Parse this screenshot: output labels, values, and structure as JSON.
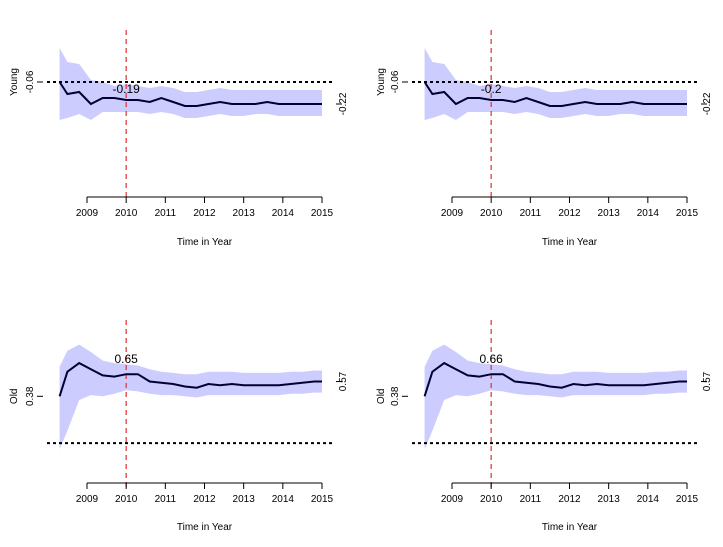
{
  "chart_data": [
    {
      "type": "line",
      "ylabel": "Young",
      "xlabel": "Time in Year",
      "x_ticks": [
        2009,
        2010,
        2011,
        2012,
        2013,
        2014,
        2015
      ],
      "y_tick_left": "-0.06",
      "y_tick_right": "-0.22",
      "reference_year": 2010,
      "reference_value_label": "-0.19",
      "hline": -0.06,
      "ylim": [
        -0.6,
        0.2
      ],
      "colors": {
        "band": "#ccccff",
        "line": "#000033",
        "ref": "#e03030"
      },
      "x": [
        2008.3,
        2008.5,
        2008.8,
        2009.1,
        2009.4,
        2009.7,
        2010.0,
        2010.3,
        2010.6,
        2010.9,
        2011.2,
        2011.5,
        2011.8,
        2012.1,
        2012.4,
        2012.7,
        2013.0,
        2013.3,
        2013.6,
        2013.9,
        2014.2,
        2014.5,
        2014.8,
        2015.0
      ],
      "series": [
        {
          "values": [
            -0.06,
            -0.12,
            -0.11,
            -0.17,
            -0.14,
            -0.14,
            -0.15,
            -0.15,
            -0.16,
            -0.14,
            -0.16,
            -0.18,
            -0.18,
            -0.17,
            -0.16,
            -0.17,
            -0.17,
            -0.17,
            -0.16,
            -0.17,
            -0.17,
            -0.17,
            -0.17,
            -0.17
          ]
        }
      ],
      "band_upper": [
        0.11,
        0.04,
        0.03,
        -0.05,
        -0.06,
        -0.08,
        -0.07,
        -0.08,
        -0.09,
        -0.08,
        -0.09,
        -0.11,
        -0.11,
        -0.1,
        -0.09,
        -0.1,
        -0.1,
        -0.1,
        -0.1,
        -0.1,
        -0.1,
        -0.1,
        -0.1,
        -0.1
      ],
      "band_lower": [
        -0.25,
        -0.24,
        -0.22,
        -0.25,
        -0.21,
        -0.21,
        -0.21,
        -0.21,
        -0.22,
        -0.21,
        -0.22,
        -0.24,
        -0.24,
        -0.23,
        -0.22,
        -0.23,
        -0.23,
        -0.22,
        -0.22,
        -0.23,
        -0.23,
        -0.23,
        -0.23,
        -0.23
      ]
    },
    {
      "type": "line",
      "ylabel": "Young",
      "xlabel": "Time in Year",
      "x_ticks": [
        2009,
        2010,
        2011,
        2012,
        2013,
        2014,
        2015
      ],
      "y_tick_left": "-0.06",
      "y_tick_right": "-0.22",
      "reference_year": 2010,
      "reference_value_label": "-0.2",
      "hline": -0.06,
      "ylim": [
        -0.6,
        0.2
      ],
      "colors": {
        "band": "#ccccff",
        "line": "#000033",
        "ref": "#e03030"
      },
      "x": [
        2008.3,
        2008.5,
        2008.8,
        2009.1,
        2009.4,
        2009.7,
        2010.0,
        2010.3,
        2010.6,
        2010.9,
        2011.2,
        2011.5,
        2011.8,
        2012.1,
        2012.4,
        2012.7,
        2013.0,
        2013.3,
        2013.6,
        2013.9,
        2014.2,
        2014.5,
        2014.8,
        2015.0
      ],
      "series": [
        {
          "values": [
            -0.06,
            -0.12,
            -0.11,
            -0.17,
            -0.14,
            -0.14,
            -0.15,
            -0.15,
            -0.16,
            -0.14,
            -0.16,
            -0.18,
            -0.18,
            -0.17,
            -0.16,
            -0.17,
            -0.17,
            -0.17,
            -0.16,
            -0.17,
            -0.17,
            -0.17,
            -0.17,
            -0.17
          ]
        }
      ],
      "band_upper": [
        0.11,
        0.04,
        0.03,
        -0.05,
        -0.06,
        -0.08,
        -0.07,
        -0.08,
        -0.09,
        -0.08,
        -0.09,
        -0.11,
        -0.11,
        -0.1,
        -0.09,
        -0.1,
        -0.1,
        -0.1,
        -0.1,
        -0.1,
        -0.1,
        -0.1,
        -0.1,
        -0.1
      ],
      "band_lower": [
        -0.25,
        -0.24,
        -0.22,
        -0.25,
        -0.21,
        -0.21,
        -0.21,
        -0.21,
        -0.22,
        -0.21,
        -0.22,
        -0.24,
        -0.24,
        -0.23,
        -0.22,
        -0.23,
        -0.23,
        -0.22,
        -0.22,
        -0.23,
        -0.23,
        -0.23,
        -0.23,
        -0.23
      ]
    },
    {
      "type": "line",
      "ylabel": "Old",
      "xlabel": "Time in Year",
      "x_ticks": [
        2009,
        2010,
        2011,
        2012,
        2013,
        2014,
        2015
      ],
      "y_tick_left": "0.38",
      "y_tick_right": "0.57",
      "reference_year": 2010,
      "reference_value_label": "0.65",
      "hline": 0.0,
      "ylim": [
        -0.3,
        1.0
      ],
      "colors": {
        "band": "#ccccff",
        "line": "#000033",
        "ref": "#e03030"
      },
      "x": [
        2008.3,
        2008.5,
        2008.8,
        2009.1,
        2009.4,
        2009.7,
        2010.0,
        2010.3,
        2010.6,
        2010.9,
        2011.2,
        2011.5,
        2011.8,
        2012.1,
        2012.4,
        2012.7,
        2013.0,
        2013.3,
        2013.6,
        2013.9,
        2014.2,
        2014.5,
        2014.8,
        2015.0
      ],
      "series": [
        {
          "values": [
            0.38,
            0.58,
            0.65,
            0.6,
            0.55,
            0.54,
            0.56,
            0.56,
            0.5,
            0.49,
            0.48,
            0.46,
            0.45,
            0.48,
            0.47,
            0.48,
            0.47,
            0.47,
            0.47,
            0.47,
            0.48,
            0.49,
            0.5,
            0.5
          ]
        }
      ],
      "band_upper": [
        0.62,
        0.75,
        0.8,
        0.74,
        0.67,
        0.65,
        0.64,
        0.63,
        0.6,
        0.58,
        0.57,
        0.56,
        0.56,
        0.58,
        0.58,
        0.58,
        0.57,
        0.57,
        0.57,
        0.57,
        0.58,
        0.58,
        0.59,
        0.59
      ],
      "band_lower": [
        -0.05,
        0.1,
        0.35,
        0.39,
        0.38,
        0.4,
        0.43,
        0.42,
        0.4,
        0.39,
        0.39,
        0.38,
        0.37,
        0.39,
        0.39,
        0.39,
        0.39,
        0.39,
        0.39,
        0.39,
        0.4,
        0.4,
        0.41,
        0.41
      ]
    },
    {
      "type": "line",
      "ylabel": "Old",
      "xlabel": "Time in Year",
      "x_ticks": [
        2009,
        2010,
        2011,
        2012,
        2013,
        2014,
        2015
      ],
      "y_tick_left": "0.38",
      "y_tick_right": "0.57",
      "reference_year": 2010,
      "reference_value_label": "0.66",
      "hline": 0.0,
      "ylim": [
        -0.3,
        1.0
      ],
      "colors": {
        "band": "#ccccff",
        "line": "#000033",
        "ref": "#e03030"
      },
      "x": [
        2008.3,
        2008.5,
        2008.8,
        2009.1,
        2009.4,
        2009.7,
        2010.0,
        2010.3,
        2010.6,
        2010.9,
        2011.2,
        2011.5,
        2011.8,
        2012.1,
        2012.4,
        2012.7,
        2013.0,
        2013.3,
        2013.6,
        2013.9,
        2014.2,
        2014.5,
        2014.8,
        2015.0
      ],
      "series": [
        {
          "values": [
            0.38,
            0.58,
            0.65,
            0.6,
            0.55,
            0.54,
            0.56,
            0.56,
            0.5,
            0.49,
            0.48,
            0.46,
            0.45,
            0.48,
            0.47,
            0.48,
            0.47,
            0.47,
            0.47,
            0.47,
            0.48,
            0.49,
            0.5,
            0.5
          ]
        }
      ],
      "band_upper": [
        0.62,
        0.75,
        0.8,
        0.74,
        0.67,
        0.65,
        0.64,
        0.63,
        0.6,
        0.58,
        0.57,
        0.56,
        0.56,
        0.58,
        0.58,
        0.58,
        0.57,
        0.57,
        0.57,
        0.57,
        0.58,
        0.58,
        0.59,
        0.59
      ],
      "band_lower": [
        -0.05,
        0.1,
        0.35,
        0.39,
        0.38,
        0.4,
        0.43,
        0.42,
        0.4,
        0.39,
        0.39,
        0.38,
        0.37,
        0.39,
        0.39,
        0.39,
        0.39,
        0.39,
        0.39,
        0.39,
        0.4,
        0.4,
        0.41,
        0.41
      ]
    }
  ]
}
